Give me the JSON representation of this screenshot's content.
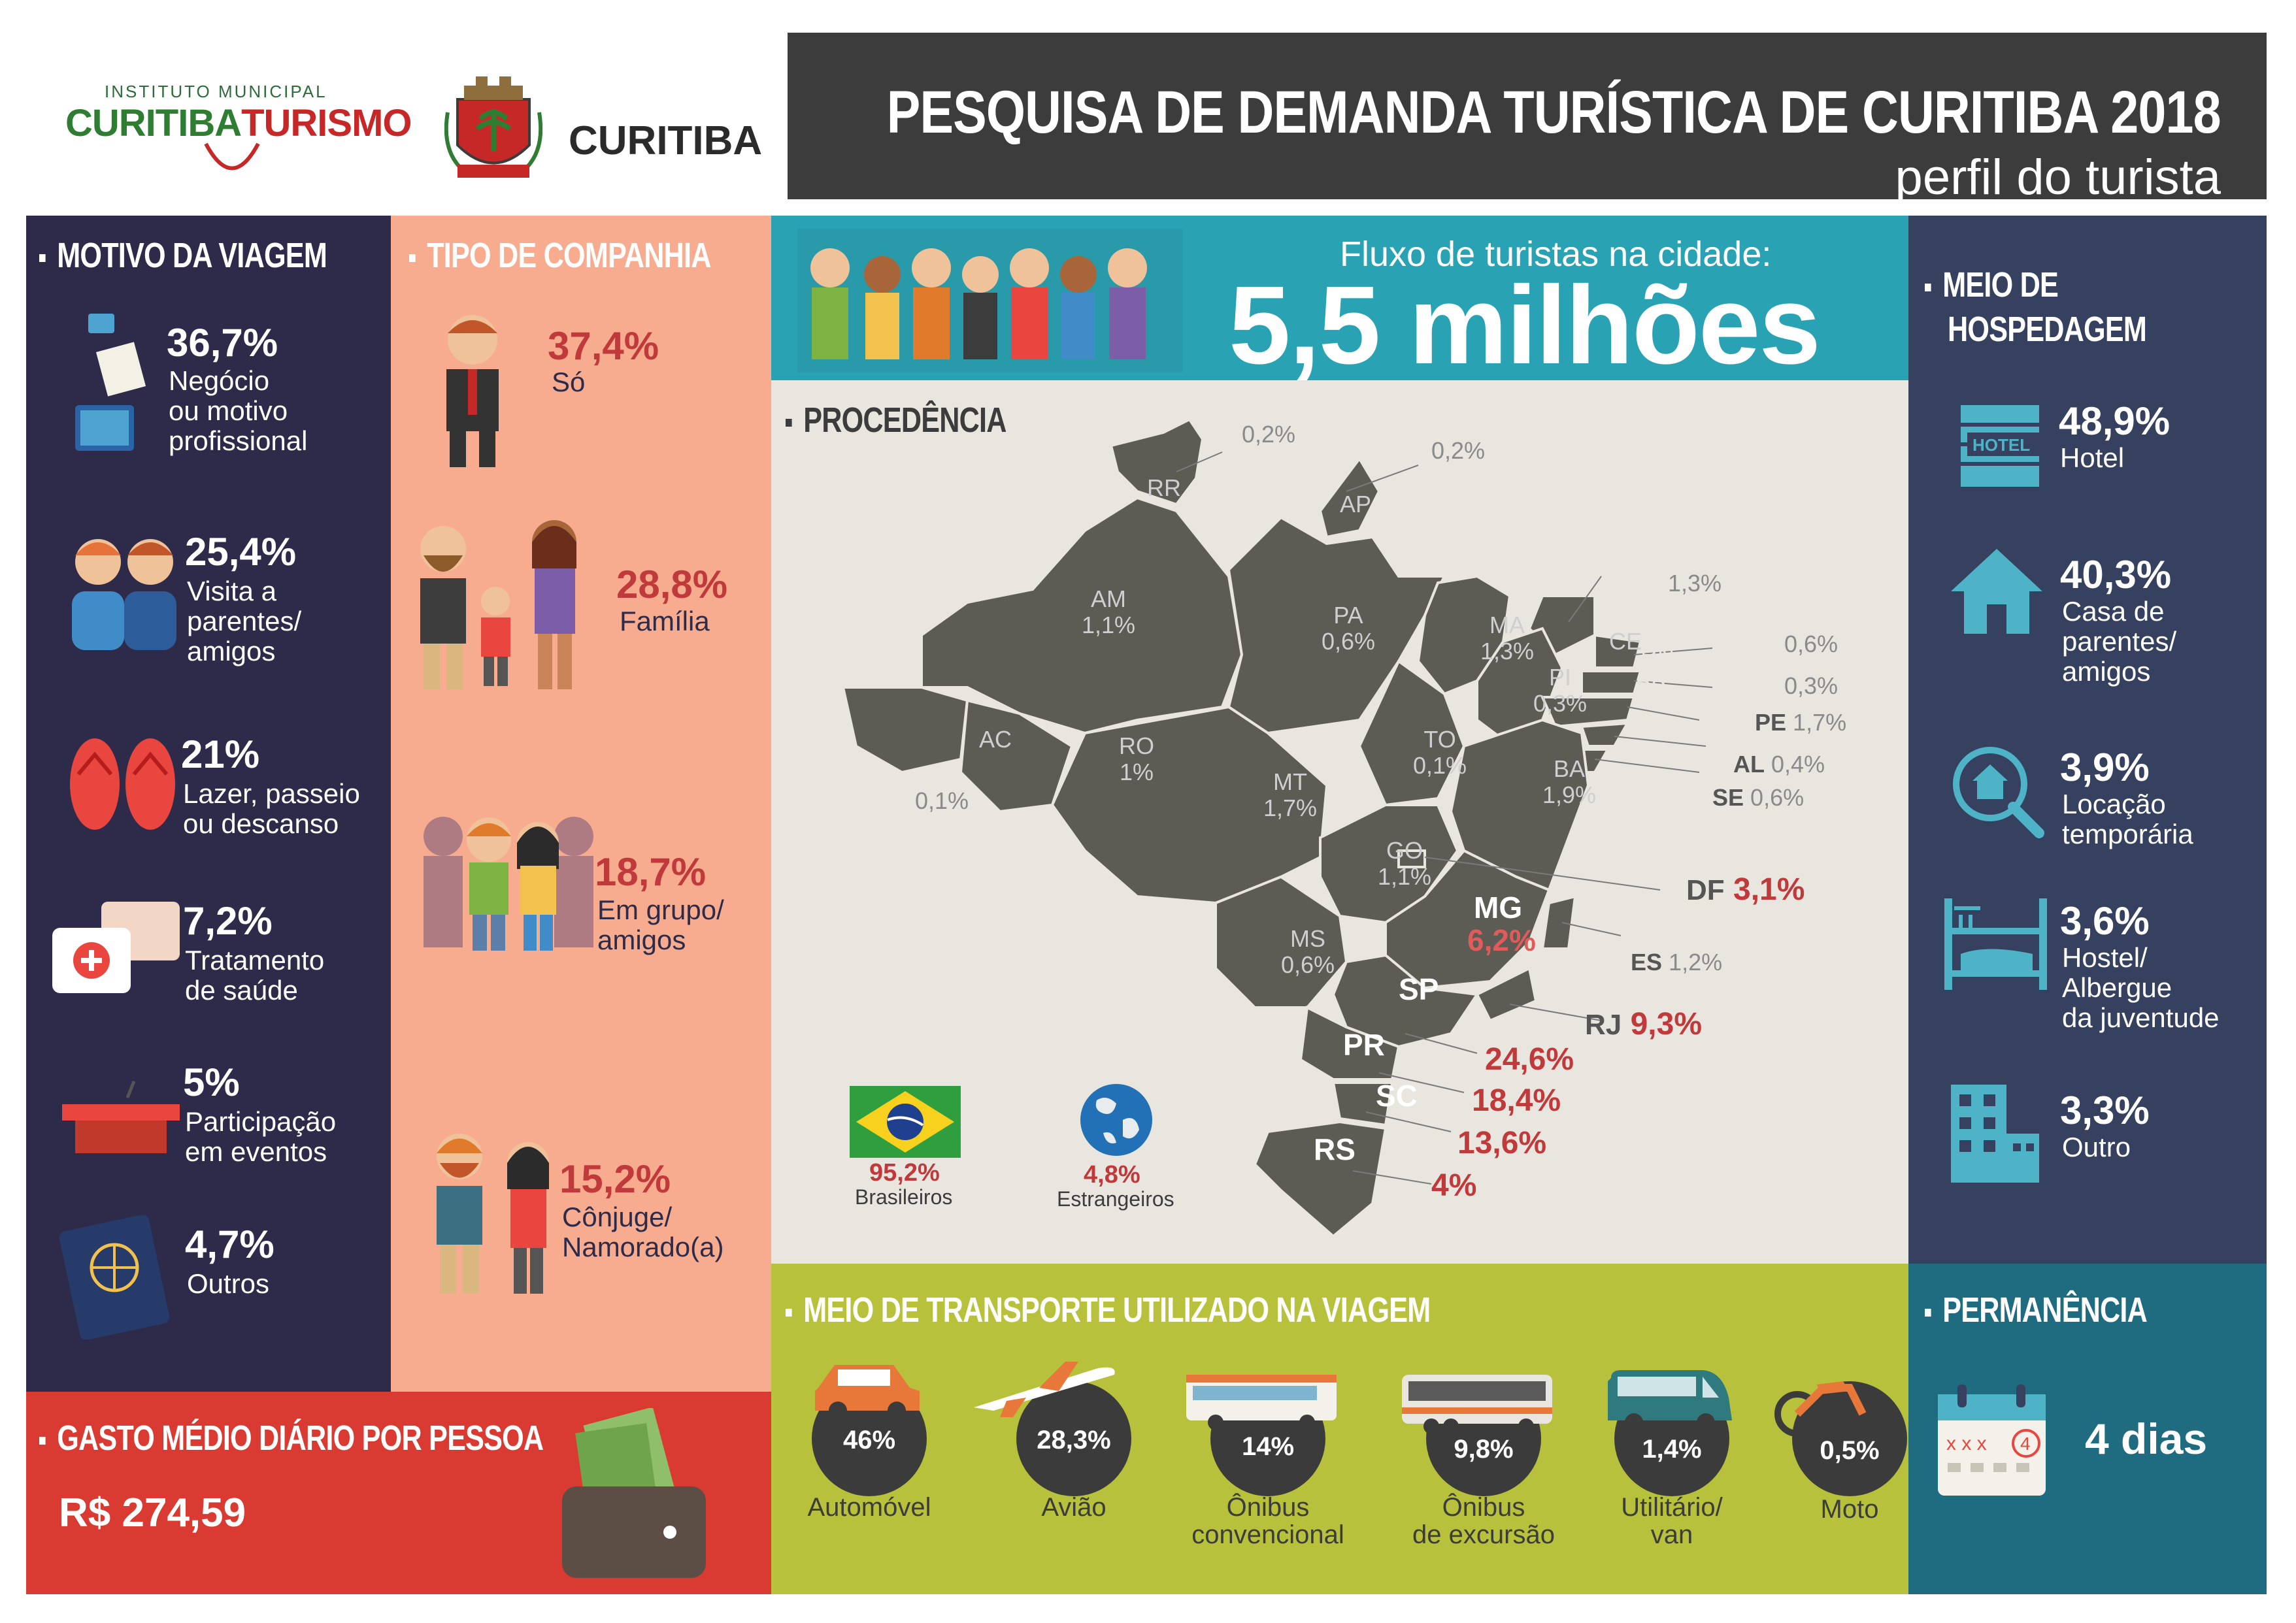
{
  "header": {
    "logo_inst_small": "INSTITUTO MUNICIPAL",
    "logo_inst_a": "CURITIBA",
    "logo_inst_b": "TURISMO",
    "logo_city": "CURITIBA",
    "title": "PESQUISA DE DEMANDA TURÍSTICA DE CURITIBA 2018",
    "subtitle": "perfil do turista"
  },
  "motivo": {
    "title": "MOTIVO DA VIAGEM",
    "items": [
      {
        "pct": "36,7%",
        "label": "Negócio\nou motivo\nprofissional",
        "icon": "business-icon"
      },
      {
        "pct": "25,4%",
        "label": "Visita a\nparentes/\namigos",
        "icon": "friends-icon"
      },
      {
        "pct": "21%",
        "label": "Lazer, passeio\nou descanso",
        "icon": "flip-flops-icon"
      },
      {
        "pct": "7,2%",
        "label": "Tratamento\nde saúde",
        "icon": "first-aid-icon"
      },
      {
        "pct": "5%",
        "label": "Participação\nem eventos",
        "icon": "podium-icon"
      },
      {
        "pct": "4,7%",
        "label": "Outros",
        "icon": "passport-icon"
      }
    ]
  },
  "companhia": {
    "title": "TIPO DE COMPANHIA",
    "items": [
      {
        "pct": "37,4%",
        "label": "Só"
      },
      {
        "pct": "28,8%",
        "label": "Família"
      },
      {
        "pct": "18,7%",
        "label": "Em grupo/\namigos"
      },
      {
        "pct": "15,2%",
        "label": "Cônjuge/\nNamorado(a)"
      }
    ]
  },
  "gasto": {
    "title": "GASTO MÉDIO DIÁRIO POR PESSOA",
    "value": "R$ 274,59"
  },
  "fluxo": {
    "label": "Fluxo de turistas na cidade:",
    "value": "5,5 milhões"
  },
  "procedencia": {
    "title": "PROCEDÊNCIA",
    "states_inside": [
      {
        "id": "RR",
        "text": "RR"
      },
      {
        "id": "AP",
        "text": "AP"
      },
      {
        "id": "AM",
        "text": "AM\n1,1%"
      },
      {
        "id": "PA",
        "text": "PA\n0,6%"
      },
      {
        "id": "MA",
        "text": "MA\n1,3%"
      },
      {
        "id": "CE",
        "text": "CE"
      },
      {
        "id": "RN",
        "text": "RN"
      },
      {
        "id": "PB",
        "text": "PB"
      },
      {
        "id": "PI",
        "text": "PI\n0,3%"
      },
      {
        "id": "AC",
        "text": "AC"
      },
      {
        "id": "RO",
        "text": "RO\n1%"
      },
      {
        "id": "MT",
        "text": "MT\n1,7%"
      },
      {
        "id": "TO",
        "text": "TO\n0,1%"
      },
      {
        "id": "BA",
        "text": "BA\n1,9%"
      },
      {
        "id": "GO",
        "text": "GO\n1,1%"
      },
      {
        "id": "MS",
        "text": "MS\n0,6%"
      }
    ],
    "mg": {
      "name": "MG",
      "pct": "6,2%"
    },
    "sp": "SP",
    "pr": "PR",
    "sc": "SC",
    "rs": "RS",
    "outside": {
      "rr": "0,2%",
      "ap": "0,2%",
      "ce": "1,3%",
      "rn": "0,6%",
      "pb": "0,3%",
      "pe_name": "PE",
      "pe": "1,7%",
      "al_name": "AL",
      "al": "0,4%",
      "se_name": "SE",
      "se": "0,6%",
      "ac": "0,1%",
      "es_name": "ES",
      "es": "1,2%",
      "df_name": "DF",
      "df": "3,1%",
      "rj_name": "RJ",
      "rj": "9,3%",
      "sp": "24,6%",
      "pr": "18,4%",
      "sc": "13,6%",
      "rs": "4%"
    },
    "brasileiros_pct": "95,2%",
    "brasileiros_label": "Brasileiros",
    "estrangeiros_pct": "4,8%",
    "estrangeiros_label": "Estrangeiros"
  },
  "hospedagem": {
    "title_1": "MEIO DE",
    "title_2": "HOSPEDAGEM",
    "items": [
      {
        "pct": "48,9%",
        "label": "Hotel",
        "icon": "hotel-icon",
        "icon_text": "HOTEL"
      },
      {
        "pct": "40,3%",
        "label": "Casa de\nparentes/\namigos",
        "icon": "house-icon"
      },
      {
        "pct": "3,9%",
        "label": "Locação\ntemporária",
        "icon": "house-search-icon"
      },
      {
        "pct": "3,6%",
        "label": "Hostel/\nAlbergue\nda juventude",
        "icon": "bunk-bed-icon"
      },
      {
        "pct": "3,3%",
        "label": "Outro",
        "icon": "building-icon"
      }
    ]
  },
  "transporte": {
    "title": "MEIO DE TRANSPORTE UTILIZADO NA VIAGEM",
    "items": [
      {
        "pct": "46%",
        "label": "Automóvel"
      },
      {
        "pct": "28,3%",
        "label": "Avião"
      },
      {
        "pct": "14%",
        "label": "Ônibus\nconvencional"
      },
      {
        "pct": "9,8%",
        "label": "Ônibus\nde excursão"
      },
      {
        "pct": "1,4%",
        "label": "Utilitário/\nvan"
      },
      {
        "pct": "0,5%",
        "label": "Moto"
      }
    ]
  },
  "permanencia": {
    "title": "PERMANÊNCIA",
    "value": "4 dias",
    "calendar_marks": "x x x",
    "calendar_day": "4"
  },
  "colors": {
    "dark_purple": "#2d2b49",
    "salmon": "#f7ac8f",
    "red": "#d93a32",
    "teal": "#29a3b3",
    "beige": "#e8e6de",
    "olive": "#b8c13b",
    "navy": "#35415f",
    "petrol": "#1f6b80",
    "highlight_red": "#c0393b",
    "map_gray": "#5c5b54"
  }
}
